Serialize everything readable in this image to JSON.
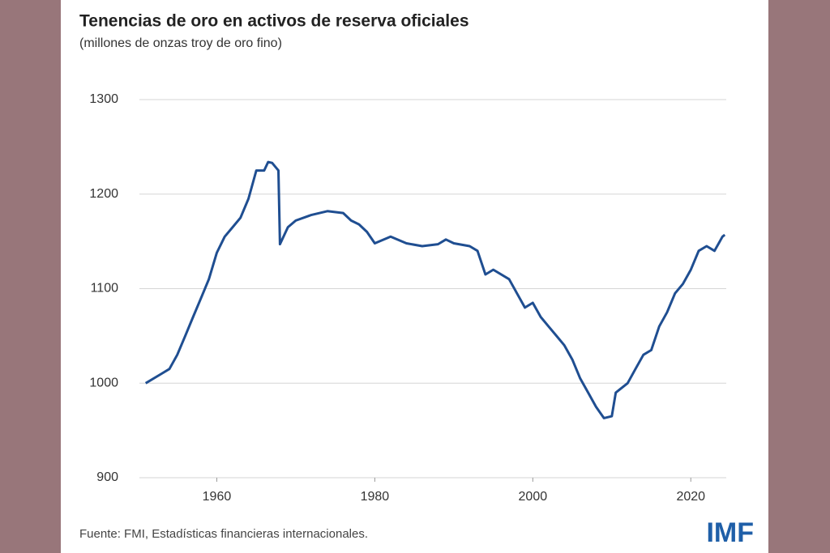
{
  "chart_data": {
    "type": "line",
    "title": "Tenencias de oro en activos de reserva oficiales",
    "subtitle": "(millones de onzas troy de oro fino)",
    "source": "Fuente: FMI, Estadísticas financieras internacionales.",
    "logo": "IMF",
    "x": [
      1951,
      1953,
      1954,
      1955,
      1956,
      1957,
      1958,
      1959,
      1960,
      1961,
      1962,
      1963,
      1964,
      1965,
      1966,
      1966.5,
      1967,
      1967.8,
      1968,
      1969,
      1970,
      1972,
      1974,
      1976,
      1977,
      1978,
      1979,
      1980,
      1982,
      1984,
      1986,
      1988,
      1989,
      1990,
      1992,
      1993,
      1994,
      1995,
      1997,
      1998,
      1999,
      2000,
      2001,
      2002,
      2003,
      2004,
      2005,
      2006,
      2007,
      2008,
      2009,
      2010,
      2010.5,
      2012,
      2013,
      2014,
      2015,
      2016,
      2017,
      2018,
      2019,
      2020,
      2021,
      2022,
      2023,
      2024,
      2024.3
    ],
    "series": [
      {
        "color": "#1f4e91",
        "values": [
          1000,
          1010,
          1015,
          1030,
          1050,
          1070,
          1090,
          1110,
          1138,
          1155,
          1165,
          1175,
          1195,
          1225,
          1225,
          1234,
          1233,
          1225,
          1147,
          1165,
          1172,
          1178,
          1182,
          1180,
          1172,
          1168,
          1160,
          1148,
          1155,
          1148,
          1145,
          1147,
          1152,
          1148,
          1145,
          1140,
          1115,
          1120,
          1110,
          1095,
          1080,
          1085,
          1070,
          1060,
          1050,
          1040,
          1025,
          1005,
          990,
          975,
          963,
          965,
          990,
          1000,
          1015,
          1030,
          1035,
          1060,
          1075,
          1095,
          1105,
          1120,
          1140,
          1145,
          1140,
          1155,
          1157
        ]
      }
    ],
    "xlim": [
      1950,
      2025
    ],
    "xticks": [
      1960,
      1980,
      2000,
      2020
    ],
    "ylim": [
      900,
      1300
    ],
    "yticks": [
      900,
      1000,
      1100,
      1200,
      1300
    ],
    "grid": true
  }
}
